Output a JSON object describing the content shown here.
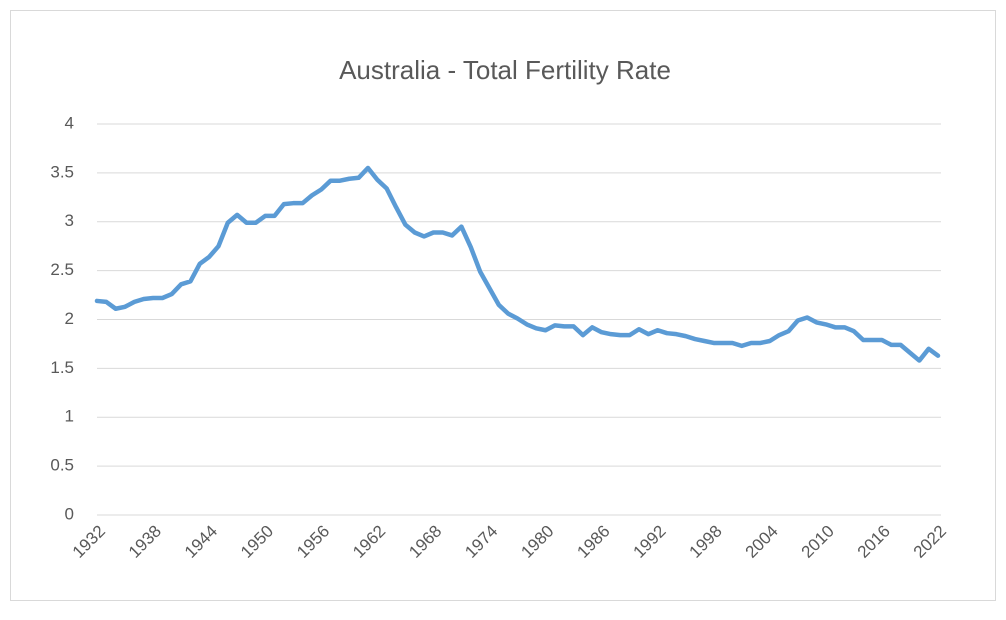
{
  "chart_data": {
    "type": "line",
    "title": "Australia - Total Fertility Rate",
    "categories": [
      "1932",
      null,
      null,
      null,
      null,
      null,
      "1938",
      null,
      null,
      null,
      null,
      null,
      "1944",
      null,
      null,
      null,
      null,
      null,
      "1950",
      null,
      null,
      null,
      null,
      null,
      "1956",
      null,
      null,
      null,
      null,
      null,
      "1962",
      null,
      null,
      null,
      null,
      null,
      "1968",
      null,
      null,
      null,
      null,
      null,
      "1974",
      null,
      null,
      null,
      null,
      null,
      "1980",
      null,
      null,
      null,
      null,
      null,
      "1986",
      null,
      null,
      null,
      null,
      null,
      "1992",
      null,
      null,
      null,
      null,
      null,
      "1998",
      null,
      null,
      null,
      null,
      null,
      "2004",
      null,
      null,
      null,
      null,
      null,
      "2010",
      null,
      null,
      null,
      null,
      null,
      "2016",
      null,
      null,
      null,
      null,
      null,
      "2022"
    ],
    "values": [
      2.19,
      2.18,
      2.11,
      2.13,
      2.18,
      2.21,
      2.22,
      2.22,
      2.26,
      2.36,
      2.39,
      2.57,
      2.64,
      2.75,
      2.99,
      3.07,
      2.99,
      2.99,
      3.06,
      3.06,
      3.18,
      3.19,
      3.19,
      3.27,
      3.33,
      3.42,
      3.42,
      3.44,
      3.45,
      3.55,
      3.43,
      3.34,
      3.15,
      2.97,
      2.89,
      2.85,
      2.89,
      2.89,
      2.86,
      2.95,
      2.74,
      2.49,
      2.32,
      2.15,
      2.06,
      2.01,
      1.95,
      1.91,
      1.89,
      1.94,
      1.93,
      1.93,
      1.84,
      1.92,
      1.87,
      1.85,
      1.84,
      1.84,
      1.9,
      1.85,
      1.89,
      1.86,
      1.85,
      1.83,
      1.8,
      1.78,
      1.76,
      1.76,
      1.76,
      1.73,
      1.76,
      1.76,
      1.78,
      1.84,
      1.88,
      1.99,
      2.02,
      1.97,
      1.95,
      1.92,
      1.92,
      1.88,
      1.79,
      1.79,
      1.79,
      1.74,
      1.74,
      1.66,
      1.58,
      1.7,
      1.63
    ],
    "color": "#5b9bd5",
    "ylim": [
      0,
      4
    ],
    "yticks": [
      0,
      0.5,
      1,
      1.5,
      2,
      2.5,
      3,
      3.5,
      4
    ],
    "grid": true
  }
}
